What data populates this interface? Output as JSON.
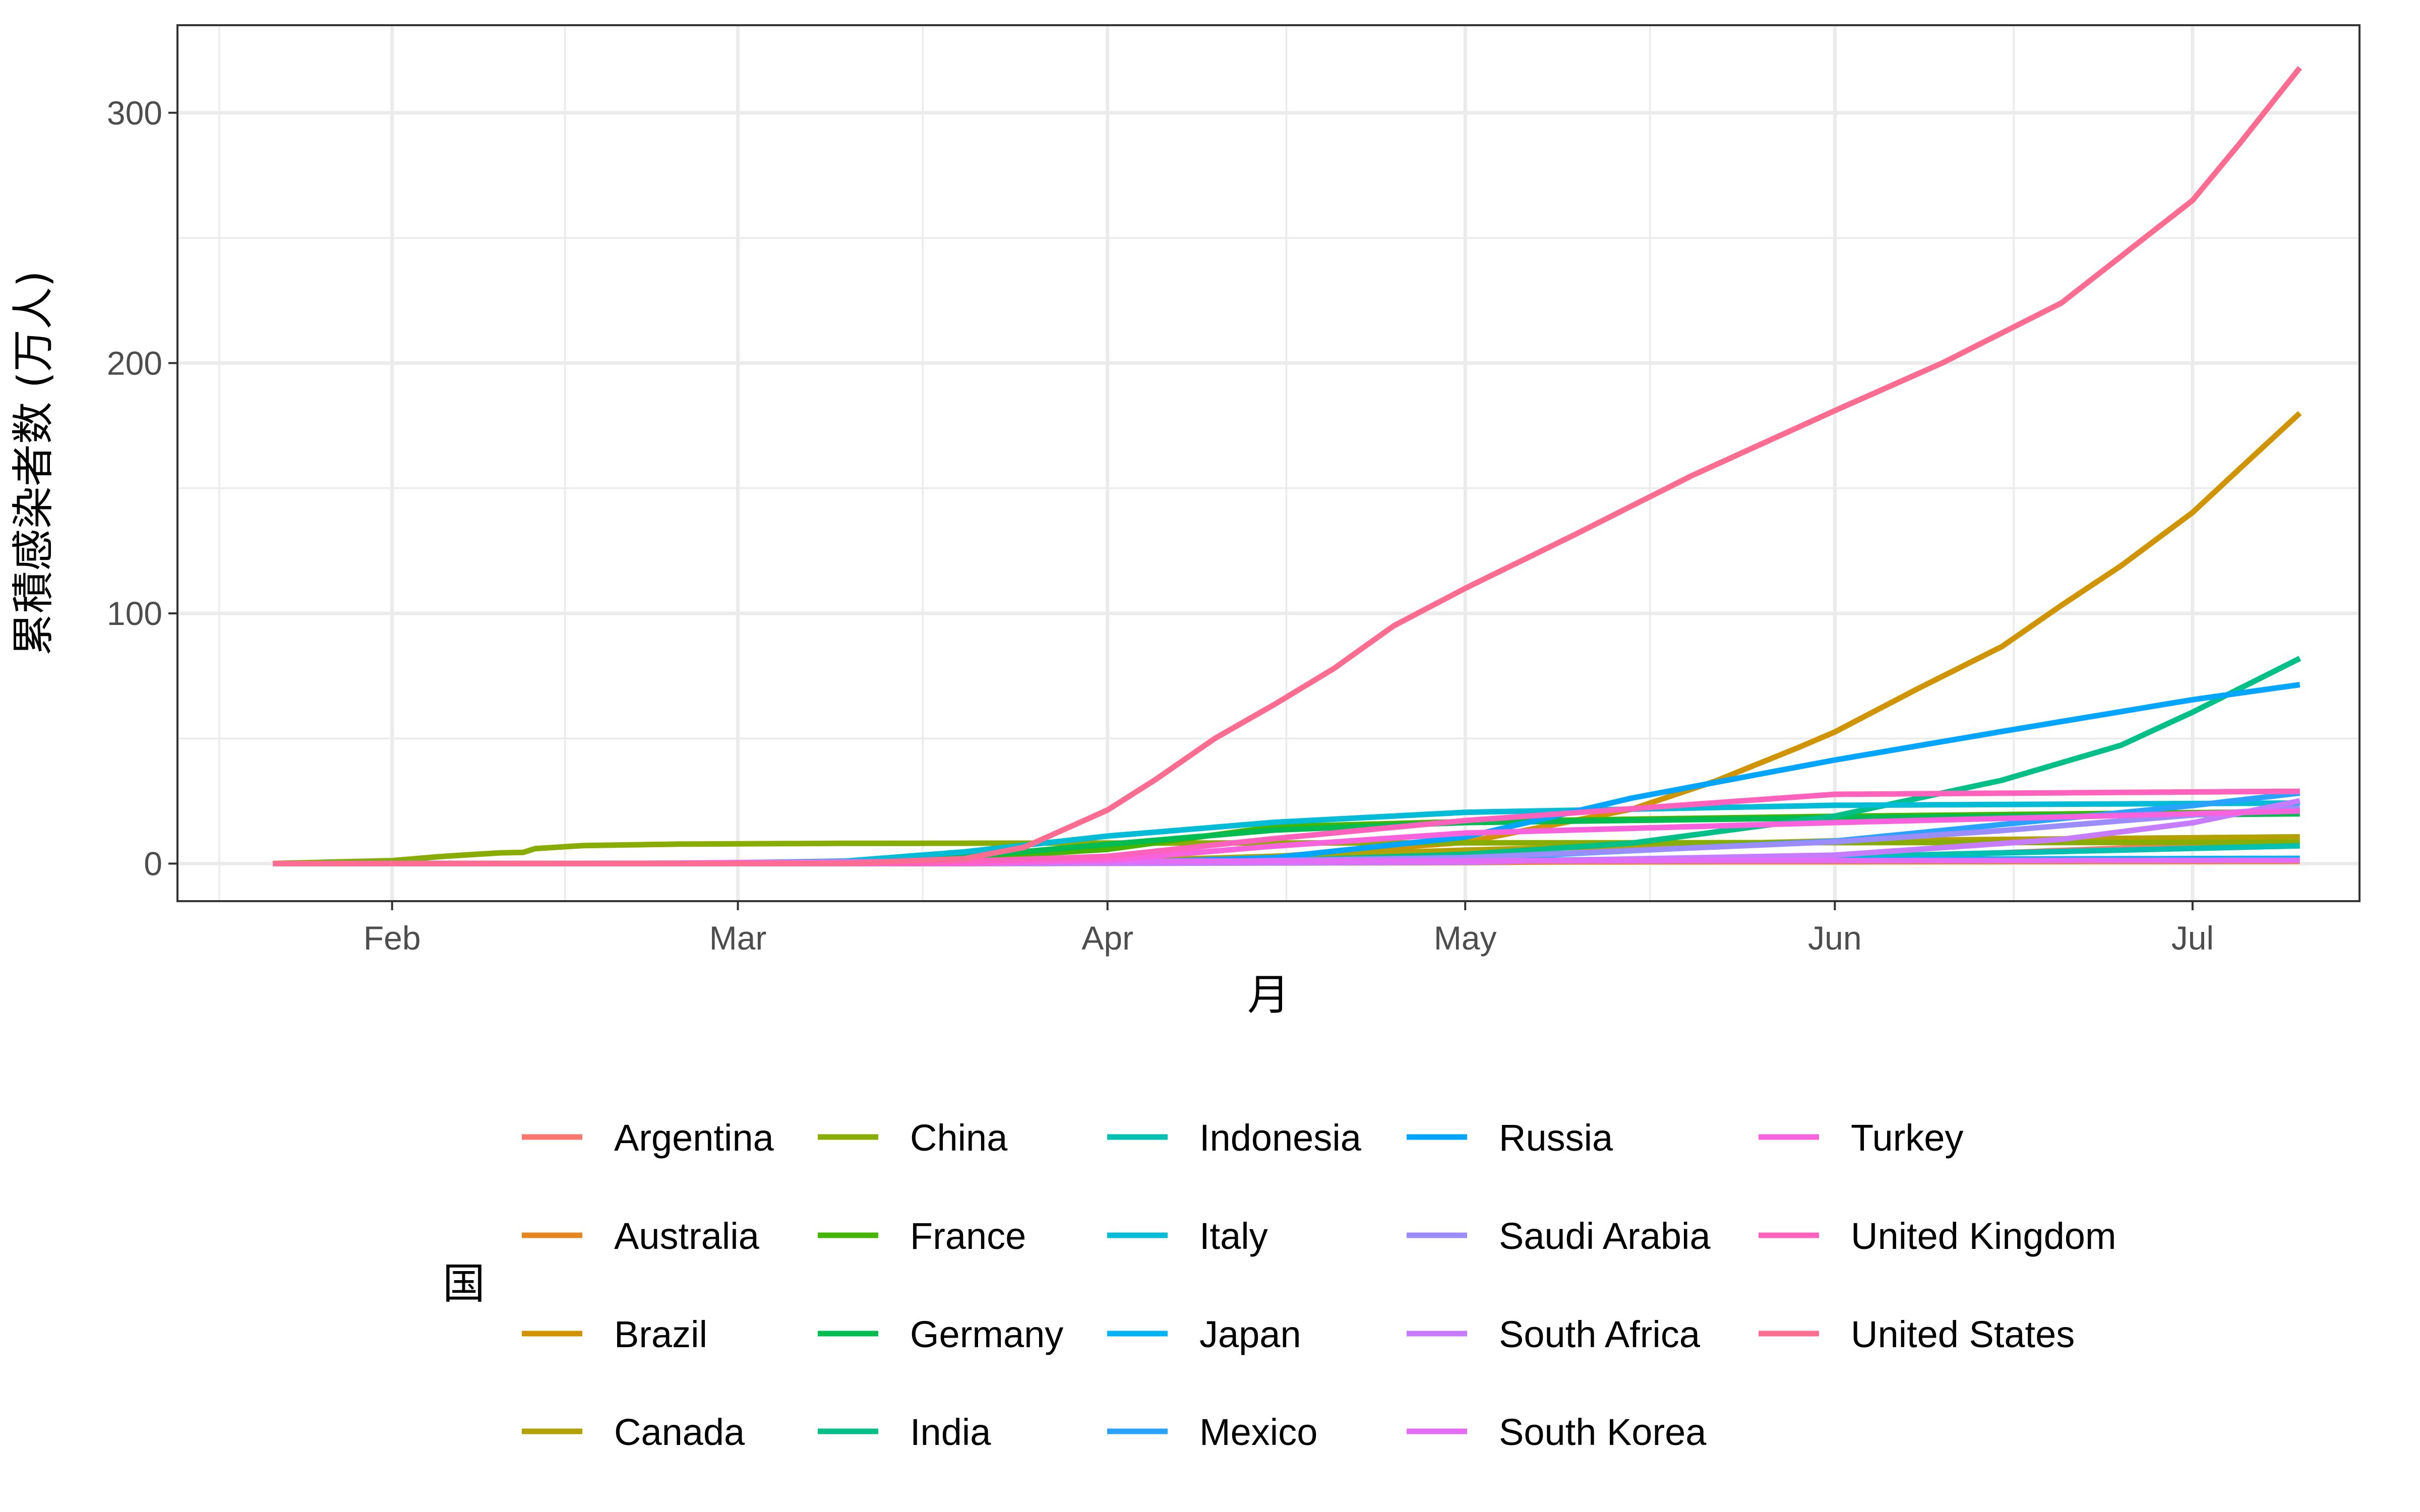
{
  "chart_data": {
    "type": "line",
    "title": "",
    "xlabel": "月",
    "ylabel": "累積感染者数 (万人)",
    "legend_title": "国",
    "legend_position": "bottom",
    "grid": true,
    "xlim": [
      "2020-01-14",
      "2020-07-15"
    ],
    "ylim": [
      -15,
      335
    ],
    "x_ticks": [
      {
        "label": "Feb",
        "date": "2020-02-01"
      },
      {
        "label": "Mar",
        "date": "2020-03-01"
      },
      {
        "label": "Apr",
        "date": "2020-04-01"
      },
      {
        "label": "May",
        "date": "2020-05-01"
      },
      {
        "label": "Jun",
        "date": "2020-06-01"
      },
      {
        "label": "Jul",
        "date": "2020-07-01"
      }
    ],
    "y_ticks": [
      0,
      100,
      200,
      300
    ],
    "series": [
      {
        "name": "Argentina",
        "color": "#F8766D",
        "points": [
          [
            "2020-01-22",
            0
          ],
          [
            "2020-03-20",
            0
          ],
          [
            "2020-05-01",
            0.4
          ],
          [
            "2020-06-01",
            1.7
          ],
          [
            "2020-07-10",
            9.0
          ]
        ]
      },
      {
        "name": "Australia",
        "color": "#E7851E",
        "points": [
          [
            "2020-01-22",
            0
          ],
          [
            "2020-03-20",
            0.1
          ],
          [
            "2020-04-10",
            0.6
          ],
          [
            "2020-07-10",
            0.9
          ]
        ]
      },
      {
        "name": "Brazil",
        "color": "#D09400",
        "points": [
          [
            "2020-01-22",
            0
          ],
          [
            "2020-03-25",
            0.2
          ],
          [
            "2020-04-15",
            2.8
          ],
          [
            "2020-05-01",
            8.5
          ],
          [
            "2020-05-15",
            21.8
          ],
          [
            "2020-05-22",
            33.0
          ],
          [
            "2020-05-29",
            46.5
          ],
          [
            "2020-06-01",
            52.6
          ],
          [
            "2020-06-08",
            70.0
          ],
          [
            "2020-06-15",
            86.7
          ],
          [
            "2020-06-20",
            103.2
          ],
          [
            "2020-06-25",
            119.0
          ],
          [
            "2020-07-01",
            140.3
          ],
          [
            "2020-07-05",
            158.0
          ],
          [
            "2020-07-10",
            180.0
          ]
        ]
      },
      {
        "name": "Canada",
        "color": "#B2A100",
        "points": [
          [
            "2020-01-22",
            0
          ],
          [
            "2020-03-20",
            0.1
          ],
          [
            "2020-04-10",
            2.2
          ],
          [
            "2020-05-01",
            5.4
          ],
          [
            "2020-06-01",
            9.1
          ],
          [
            "2020-07-10",
            10.7
          ]
        ]
      },
      {
        "name": "China",
        "color": "#89AC00",
        "points": [
          [
            "2020-01-22",
            0.05
          ],
          [
            "2020-02-01",
            1.2
          ],
          [
            "2020-02-05",
            2.8
          ],
          [
            "2020-02-10",
            4.3
          ],
          [
            "2020-02-12",
            4.5
          ],
          [
            "2020-02-13",
            6.0
          ],
          [
            "2020-02-17",
            7.2
          ],
          [
            "2020-02-25",
            7.8
          ],
          [
            "2020-03-10",
            8.1
          ],
          [
            "2020-04-01",
            8.2
          ],
          [
            "2020-07-10",
            8.5
          ]
        ]
      },
      {
        "name": "France",
        "color": "#45B500",
        "points": [
          [
            "2020-01-22",
            0
          ],
          [
            "2020-03-01",
            0.01
          ],
          [
            "2020-03-15",
            0.5
          ],
          [
            "2020-04-01",
            5.7
          ],
          [
            "2020-04-15",
            14.7
          ],
          [
            "2020-05-01",
            16.8
          ],
          [
            "2020-06-01",
            18.9
          ],
          [
            "2020-07-10",
            20.8
          ]
        ]
      },
      {
        "name": "Germany",
        "color": "#00BC51",
        "points": [
          [
            "2020-01-22",
            0
          ],
          [
            "2020-03-01",
            0.01
          ],
          [
            "2020-03-15",
            0.6
          ],
          [
            "2020-04-01",
            7.7
          ],
          [
            "2020-04-15",
            13.4
          ],
          [
            "2020-05-01",
            16.4
          ],
          [
            "2020-06-01",
            18.3
          ],
          [
            "2020-07-10",
            19.9
          ]
        ]
      },
      {
        "name": "India",
        "color": "#00C087",
        "points": [
          [
            "2020-01-22",
            0
          ],
          [
            "2020-03-25",
            0.1
          ],
          [
            "2020-04-15",
            1.2
          ],
          [
            "2020-05-01",
            3.7
          ],
          [
            "2020-05-15",
            8.2
          ],
          [
            "2020-06-01",
            19.0
          ],
          [
            "2020-06-15",
            33.3
          ],
          [
            "2020-06-25",
            47.3
          ],
          [
            "2020-07-01",
            60.5
          ],
          [
            "2020-07-10",
            82.0
          ]
        ]
      },
      {
        "name": "Indonesia",
        "color": "#00C0B2",
        "points": [
          [
            "2020-01-22",
            0
          ],
          [
            "2020-04-01",
            0.2
          ],
          [
            "2020-05-01",
            1.0
          ],
          [
            "2020-06-01",
            2.7
          ],
          [
            "2020-07-10",
            7.1
          ]
        ]
      },
      {
        "name": "Italy",
        "color": "#00BCD6",
        "points": [
          [
            "2020-01-22",
            0
          ],
          [
            "2020-02-25",
            0.03
          ],
          [
            "2020-03-10",
            1.0
          ],
          [
            "2020-03-20",
            4.7
          ],
          [
            "2020-04-01",
            11.0
          ],
          [
            "2020-04-15",
            16.5
          ],
          [
            "2020-05-01",
            20.5
          ],
          [
            "2020-06-01",
            23.3
          ],
          [
            "2020-07-10",
            24.2
          ]
        ]
      },
      {
        "name": "Japan",
        "color": "#00B3F2",
        "points": [
          [
            "2020-01-22",
            0
          ],
          [
            "2020-04-01",
            0.2
          ],
          [
            "2020-05-01",
            1.4
          ],
          [
            "2020-07-10",
            2.1
          ]
        ]
      },
      {
        "name": "Mexico",
        "color": "#29A3FF",
        "points": [
          [
            "2020-01-22",
            0
          ],
          [
            "2020-04-01",
            0.1
          ],
          [
            "2020-05-01",
            2.0
          ],
          [
            "2020-06-01",
            9.0
          ],
          [
            "2020-07-01",
            23.2
          ],
          [
            "2020-07-10",
            28.2
          ]
        ]
      },
      {
        "name": "Russia",
        "color": "#00A5FF",
        "points": [
          [
            "2020-01-22",
            0
          ],
          [
            "2020-04-01",
            0.3
          ],
          [
            "2020-04-15",
            2.4
          ],
          [
            "2020-05-01",
            10.6
          ],
          [
            "2020-05-15",
            26.2
          ],
          [
            "2020-06-01",
            41.4
          ],
          [
            "2020-06-15",
            52.8
          ],
          [
            "2020-07-01",
            65.5
          ],
          [
            "2020-07-10",
            71.5
          ]
        ]
      },
      {
        "name": "Saudi Arabia",
        "color": "#9C8DFF",
        "points": [
          [
            "2020-01-22",
            0
          ],
          [
            "2020-04-01",
            0.2
          ],
          [
            "2020-05-01",
            2.4
          ],
          [
            "2020-06-01",
            8.7
          ],
          [
            "2020-06-15",
            13.2
          ],
          [
            "2020-07-01",
            19.4
          ],
          [
            "2020-07-10",
            22.3
          ]
        ]
      },
      {
        "name": "South Africa",
        "color": "#C77CFF",
        "points": [
          [
            "2020-01-22",
            0
          ],
          [
            "2020-04-01",
            0.1
          ],
          [
            "2020-05-01",
            0.6
          ],
          [
            "2020-06-01",
            3.4
          ],
          [
            "2020-06-20",
            9.7
          ],
          [
            "2020-07-01",
            16.3
          ],
          [
            "2020-07-10",
            25.1
          ]
        ]
      },
      {
        "name": "South Korea",
        "color": "#E46DF6",
        "points": [
          [
            "2020-01-22",
            0
          ],
          [
            "2020-02-20",
            0.01
          ],
          [
            "2020-03-01",
            0.4
          ],
          [
            "2020-03-15",
            0.8
          ],
          [
            "2020-04-01",
            1.0
          ],
          [
            "2020-07-10",
            1.3
          ]
        ]
      },
      {
        "name": "Turkey",
        "color": "#F962DD",
        "points": [
          [
            "2020-01-22",
            0
          ],
          [
            "2020-03-20",
            0
          ],
          [
            "2020-04-01",
            1.5
          ],
          [
            "2020-04-15",
            7.0
          ],
          [
            "2020-05-01",
            12.2
          ],
          [
            "2020-06-01",
            16.4
          ],
          [
            "2020-07-10",
            21.0
          ]
        ]
      },
      {
        "name": "United Kingdom",
        "color": "#FF62BC",
        "points": [
          [
            "2020-01-22",
            0
          ],
          [
            "2020-03-01",
            0
          ],
          [
            "2020-03-15",
            0.1
          ],
          [
            "2020-04-01",
            2.9
          ],
          [
            "2020-04-15",
            10.0
          ],
          [
            "2020-05-01",
            17.2
          ],
          [
            "2020-06-01",
            27.7
          ],
          [
            "2020-07-10",
            28.9
          ]
        ]
      },
      {
        "name": "United States",
        "color": "#FF6C91",
        "points": [
          [
            "2020-01-22",
            0
          ],
          [
            "2020-03-10",
            0.1
          ],
          [
            "2020-03-20",
            2.0
          ],
          [
            "2020-03-25",
            6.5
          ],
          [
            "2020-04-01",
            21.4
          ],
          [
            "2020-04-05",
            33.5
          ],
          [
            "2020-04-10",
            50.0
          ],
          [
            "2020-04-15",
            63.6
          ],
          [
            "2020-04-20",
            78.0
          ],
          [
            "2020-04-25",
            95.0
          ],
          [
            "2020-05-01",
            110.0
          ],
          [
            "2020-05-10",
            131.0
          ],
          [
            "2020-05-20",
            155.0
          ],
          [
            "2020-06-01",
            181.0
          ],
          [
            "2020-06-10",
            200.0
          ],
          [
            "2020-06-20",
            224.0
          ],
          [
            "2020-07-01",
            265.0
          ],
          [
            "2020-07-05",
            288.0
          ],
          [
            "2020-07-10",
            318.0
          ]
        ]
      }
    ]
  }
}
